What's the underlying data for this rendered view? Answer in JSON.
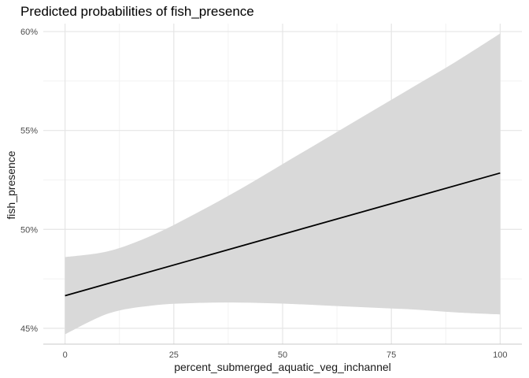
{
  "chart_data": {
    "type": "line",
    "title": "Predicted probabilities of fish_presence",
    "xlabel": "percent_submerged_aquatic_veg_inchannel",
    "ylabel": "fish_presence",
    "xlim": [
      -5,
      105
    ],
    "ylim": [
      44.2,
      60.4
    ],
    "x_ticks": [
      0,
      25,
      50,
      75,
      100
    ],
    "x_tick_labels": [
      "0",
      "25",
      "50",
      "75",
      "100"
    ],
    "y_ticks": [
      45,
      50,
      55,
      60
    ],
    "y_tick_labels": [
      "45%",
      "50%",
      "55%",
      "60%"
    ],
    "grid": true,
    "colors": {
      "line": "#000000",
      "ribbon": "#d9d9d9",
      "grid_major": "#e5e5e5",
      "grid_minor": "#f2f2f2"
    },
    "series": [
      {
        "x": [
          0,
          100
        ],
        "y": [
          46.65,
          52.85
        ]
      }
    ],
    "ribbon": {
      "x": [
        0,
        10,
        20,
        30,
        40,
        50,
        60,
        70,
        80,
        90,
        100
      ],
      "lower": [
        44.7,
        45.75,
        46.15,
        46.28,
        46.3,
        46.25,
        46.15,
        46.05,
        45.95,
        45.8,
        45.7
      ],
      "upper": [
        48.6,
        48.9,
        49.7,
        50.8,
        52.0,
        53.3,
        54.6,
        55.9,
        57.2,
        58.5,
        59.9
      ]
    }
  }
}
